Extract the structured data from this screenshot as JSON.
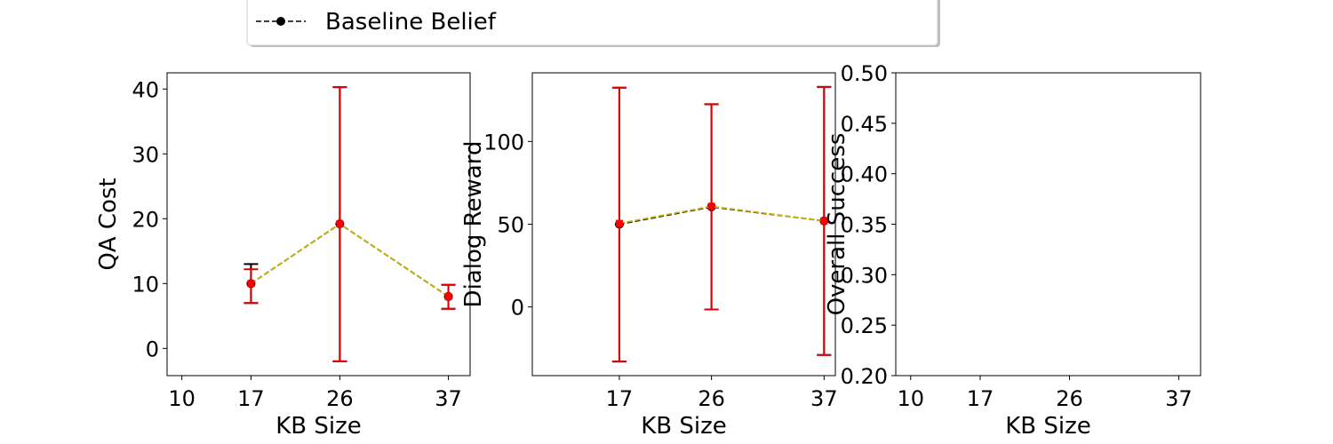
{
  "legend": {
    "entries": [
      {
        "label": "Baseline Belief",
        "color": "#000000",
        "linestyle": "dashed",
        "marker": "circle"
      }
    ],
    "placement": "top-center"
  },
  "colors": {
    "baseline": "#000000",
    "overlay_line": "#c8b400",
    "overlay_markers": "#ff0000",
    "error_bars": "#e00000"
  },
  "chart_data": [
    {
      "type": "line",
      "title": "",
      "xlabel": "KB Size",
      "ylabel": "QA Cost",
      "xlim": [
        8.5,
        39.2
      ],
      "ylim": [
        -4.2,
        42.5
      ],
      "xticks": [
        10,
        17,
        26,
        37
      ],
      "yticks": [
        0,
        10,
        20,
        30,
        40
      ],
      "grid": false,
      "x": [
        17,
        26,
        37
      ],
      "series": [
        {
          "name": "Baseline Belief",
          "values": [
            10,
            19.2,
            8
          ],
          "error_low": [
            7,
            -2,
            6.1
          ],
          "error_high": [
            13,
            40.3,
            9.8
          ]
        },
        {
          "values": [
            10,
            19.2,
            8
          ],
          "error_low": [
            7,
            -2,
            6.1
          ],
          "error_high": [
            12.2,
            40.3,
            9.8
          ]
        }
      ]
    },
    {
      "type": "line",
      "title": "",
      "xlabel": "KB Size",
      "ylabel": "Dialog Reward",
      "xlim": [
        8.5,
        38.1
      ],
      "ylim": [
        -41.5,
        141.5
      ],
      "xticks": [
        17,
        26,
        37
      ],
      "yticks": [
        0,
        50,
        100
      ],
      "grid": false,
      "x": [
        17,
        26,
        37
      ],
      "series": [
        {
          "name": "Baseline Belief",
          "values": [
            50,
            60.5,
            52
          ],
          "error_low": [
            -33,
            -1.5,
            -29
          ],
          "error_high": [
            132.5,
            122.5,
            133
          ]
        },
        {
          "values": [
            50.5,
            60.8,
            52
          ],
          "error_low": [
            -33,
            -1.5,
            -29
          ],
          "error_high": [
            132.5,
            122.5,
            133
          ]
        }
      ]
    },
    {
      "type": "line",
      "title": "",
      "xlabel": "KB Size",
      "ylabel": "Overall Success",
      "xlim": [
        8.5,
        39.2
      ],
      "ylim": [
        0.2,
        0.5
      ],
      "xticks": [
        10,
        17,
        26,
        37
      ],
      "yticks": [
        0.2,
        0.25,
        0.3,
        0.35,
        0.4,
        0.45,
        0.5
      ],
      "ytick_labels": [
        "0.20",
        "0.25",
        "0.30",
        "0.35",
        "0.40",
        "0.45",
        "0.50"
      ],
      "grid": false,
      "x": [],
      "series": []
    }
  ]
}
